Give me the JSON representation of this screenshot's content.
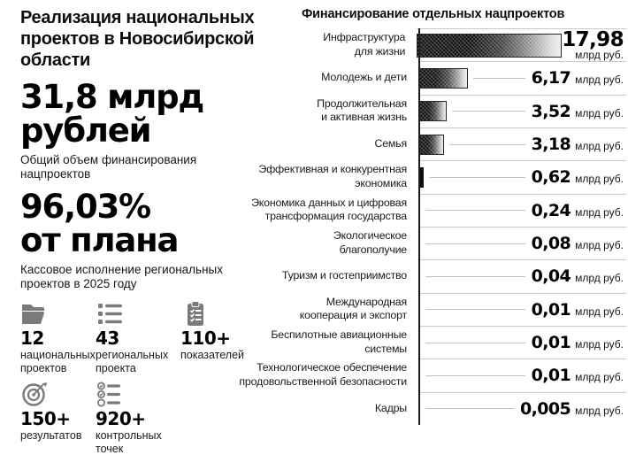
{
  "left_panel": {
    "title": "Реализация национальных\nпроектов в Новосибирской\nобласти",
    "headline_financing": {
      "value": "31,8 млрд\nрублей",
      "caption": "Общий объем финансирования\nнацпроектов"
    },
    "headline_execution": {
      "value": "96,03%\nот плана",
      "caption": "Кассовое исполнение региональных\nпроектов в 2025 году"
    },
    "stats": [
      {
        "icon": "folder-icon",
        "number": "12",
        "label": "национальных\nпроектов"
      },
      {
        "icon": "list-icon",
        "number": "43",
        "label": "региональных\nпроекта"
      },
      {
        "icon": "clipboard-icon",
        "number": "110+",
        "label": "показателей"
      },
      {
        "icon": "target-icon",
        "number": "150+",
        "label": "результатов"
      },
      {
        "icon": "checklist-icon",
        "number": "920+",
        "label": "контрольных\nточек"
      }
    ]
  },
  "chart_data": {
    "type": "bar",
    "orientation": "horizontal",
    "title": "Финансирование отдельных нацпроектов",
    "unit": "млрд руб.",
    "categories": [
      "Инфраструктура\nдля жизни",
      "Молодежь и дети",
      "Продолжительная\nи активная жизнь",
      "Семья",
      "Эффективная и конкурентная\nэкономика",
      "Экономика данных и цифровая\nтрансформация государства",
      "Экологическое\nблагополучие",
      "Туризм и гостеприимство",
      "Международная\nкооперация и экспорт",
      "Беспилотные авиационные\nсистемы",
      "Технологическое обеспечение\nпродовольственной безопасности",
      "Кадры"
    ],
    "values": [
      17.98,
      6.17,
      3.52,
      3.18,
      0.62,
      0.24,
      0.08,
      0.04,
      0.01,
      0.01,
      0.01,
      0.005
    ],
    "value_labels": [
      "17,98",
      "6,17",
      "3,52",
      "3,18",
      "0,62",
      "0,24",
      "0,08",
      "0,04",
      "0,01",
      "0,01",
      "0,01",
      "0,005"
    ],
    "xlim": [
      0,
      18
    ],
    "legend": "none",
    "grid": "row-separators",
    "colors": {
      "bar_dark": "#000000",
      "bar_light": "#ececec",
      "separator": "#c9c9c9",
      "axis": "#1c1c1c",
      "icon_gray": "#7a7a7a",
      "text": "#111111",
      "background": "#ffffff"
    }
  }
}
